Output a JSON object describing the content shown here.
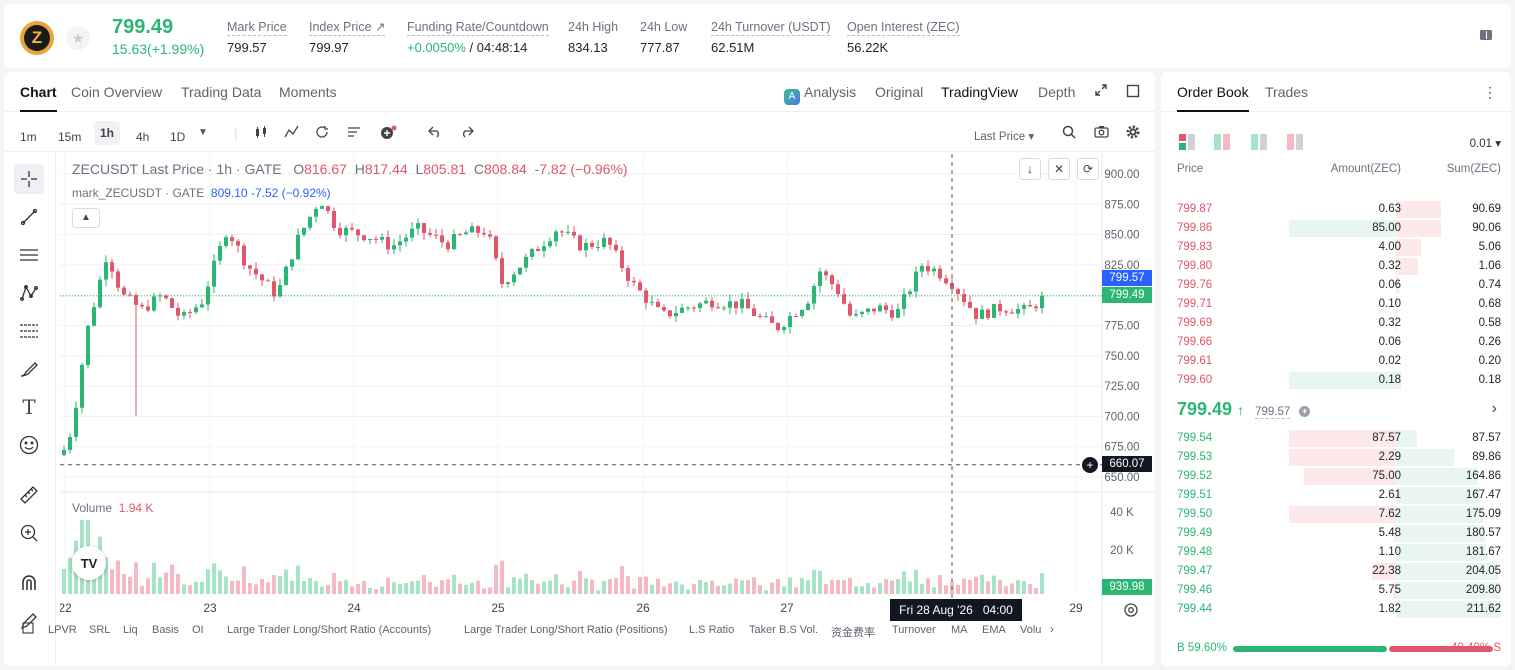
{
  "ticker": {
    "coin_glyph": "Z",
    "last_price": "799.49",
    "change": "15.63(+1.99%)",
    "stats": [
      {
        "label": "Mark Price",
        "value": "799.57"
      },
      {
        "label": "Index Price ↗",
        "value": "799.97"
      },
      {
        "label": "Funding Rate/Countdown",
        "value_green": "+0.0050%",
        "value": " / 04:48:14"
      },
      {
        "label": "24h High",
        "value": "834.13"
      },
      {
        "label": "24h Low",
        "value": "777.87"
      },
      {
        "label": "24h Turnover (USDT)",
        "value": "62.51M"
      },
      {
        "label": "Open Interest (ZEC)",
        "value": "56.22K"
      }
    ]
  },
  "chart_tabs": {
    "left": [
      "Chart",
      "Coin Overview",
      "Trading Data",
      "Moments"
    ],
    "right": [
      "Analysis",
      "Original",
      "TradingView",
      "Depth"
    ],
    "active_left": "Chart",
    "active_right": "TradingView"
  },
  "toolbar": {
    "timeframes": [
      "1m",
      "15m",
      "1h",
      "4h",
      "1D"
    ],
    "active_timeframe": "1h",
    "price_type": "Last Price ▾"
  },
  "legend": {
    "symbol": "ZECUSDT Last Price · 1h · GATE",
    "o_label": "O",
    "o": "816.67",
    "h_label": "H",
    "h": "817.44",
    "l_label": "L",
    "l": "805.81",
    "c_label": "C",
    "c": "808.84",
    "chg": "-7.82 (−0.96%)",
    "mark_name": "mark_ZECUSDT · GATE",
    "mark_values": "809.10 -7.52 (−0.92%)",
    "volume_label": "Volume",
    "volume_value": "1.94 K"
  },
  "axes": {
    "price_ticks": [
      "900.00",
      "875.00",
      "850.00",
      "825.00",
      "800.00",
      "775.00",
      "750.00",
      "725.00",
      "700.00",
      "675.00",
      "650.00"
    ],
    "volume_ticks": [
      "40 K",
      "20 K"
    ],
    "date_ticks": [
      "22",
      "23",
      "24",
      "25",
      "26",
      "27",
      "29"
    ],
    "price_labels": {
      "mark": "799.57",
      "last": "799.49",
      "cross": "660.07",
      "volume": "939.98"
    },
    "crosshair_time": "Fri 28 Aug '26   04:00"
  },
  "indicators": [
    "LPVR",
    "SRL",
    "Liq",
    "Basis",
    "OI",
    "Large Trader Long/Short Ratio (Accounts)",
    "Large Trader Long/Short Ratio (Positions)",
    "L.S Ratio",
    "Taker B.S Vol.",
    "资金费率",
    "Turnover",
    "MA",
    "EMA",
    "Volu"
  ],
  "colors": {
    "up": "#2bb673",
    "down": "#e0566a",
    "mark": "#2962ff"
  },
  "chart_data": {
    "type": "candlestick",
    "x_range": [
      "22",
      "29"
    ],
    "ylim": [
      650,
      900
    ],
    "volume_ylim": [
      0,
      50000
    ],
    "grid": true,
    "last_price": 799.49,
    "mark_price": 799.57
  },
  "orderbook": {
    "tabs": [
      "Order Book",
      "Trades"
    ],
    "precision": "0.01 ▾",
    "headers": [
      "Price",
      "Amount(ZEC)",
      "Sum(ZEC)"
    ],
    "asks": [
      {
        "price": "799.87",
        "amount": "0.63",
        "sum": "90.69",
        "amt_frac": 0.01,
        "sum_frac": 0.43
      },
      {
        "price": "799.86",
        "amount": "85.00",
        "sum": "90.06",
        "amt_frac": 0.97,
        "sum_frac": 0.43
      },
      {
        "price": "799.83",
        "amount": "4.00",
        "sum": "5.06",
        "amt_frac": 0.05,
        "sum_frac": 0.24
      },
      {
        "price": "799.80",
        "amount": "0.32",
        "sum": "1.06",
        "amt_frac": 0.0,
        "sum_frac": 0.21
      },
      {
        "price": "799.76",
        "amount": "0.06",
        "sum": "0.74",
        "amt_frac": 0.0,
        "sum_frac": 0.03
      },
      {
        "price": "799.71",
        "amount": "0.10",
        "sum": "0.68",
        "amt_frac": 0.0,
        "sum_frac": 0.02
      },
      {
        "price": "799.69",
        "amount": "0.32",
        "sum": "0.58",
        "amt_frac": 0.0,
        "sum_frac": 0.01
      },
      {
        "price": "799.66",
        "amount": "0.06",
        "sum": "0.26",
        "amt_frac": 0.0,
        "sum_frac": 0.0
      },
      {
        "price": "799.61",
        "amount": "0.02",
        "sum": "0.20",
        "amt_frac": 0.0,
        "sum_frac": 0.0
      },
      {
        "price": "799.60",
        "amount": "0.18",
        "sum": "0.18",
        "amt_frac": 0.97,
        "sum_frac": 0.0
      }
    ],
    "mid": {
      "price": "799.49",
      "arrow": "↑",
      "mark": "799.57"
    },
    "bids": [
      {
        "price": "799.54",
        "amount": "87.57",
        "sum": "87.57",
        "amt_frac": 0.97,
        "sum_frac": 0.2
      },
      {
        "price": "799.53",
        "amount": "2.29",
        "sum": "89.86",
        "amt_frac": 0.97,
        "sum_frac": 0.55
      },
      {
        "price": "799.52",
        "amount": "75.00",
        "sum": "164.86",
        "amt_frac": 0.84,
        "sum_frac": 0.78
      },
      {
        "price": "799.51",
        "amount": "2.61",
        "sum": "167.47",
        "amt_frac": 0.0,
        "sum_frac": 0.8
      },
      {
        "price": "799.50",
        "amount": "7.62",
        "sum": "175.09",
        "amt_frac": 0.97,
        "sum_frac": 0.83
      },
      {
        "price": "799.49",
        "amount": "5.48",
        "sum": "180.57",
        "amt_frac": 0.06,
        "sum_frac": 0.85
      },
      {
        "price": "799.48",
        "amount": "1.10",
        "sum": "181.67",
        "amt_frac": 0.0,
        "sum_frac": 0.86
      },
      {
        "price": "799.47",
        "amount": "22.38",
        "sum": "204.05",
        "amt_frac": 0.25,
        "sum_frac": 0.97
      },
      {
        "price": "799.46",
        "amount": "5.75",
        "sum": "209.80",
        "amt_frac": 0.07,
        "sum_frac": 0.99
      },
      {
        "price": "799.44",
        "amount": "1.82",
        "sum": "211.62",
        "amt_frac": 0.02,
        "sum_frac": 1.0
      }
    ],
    "buy_ratio": "B 59.60%",
    "sell_ratio": "40.40% S",
    "buy_frac": 0.596
  }
}
